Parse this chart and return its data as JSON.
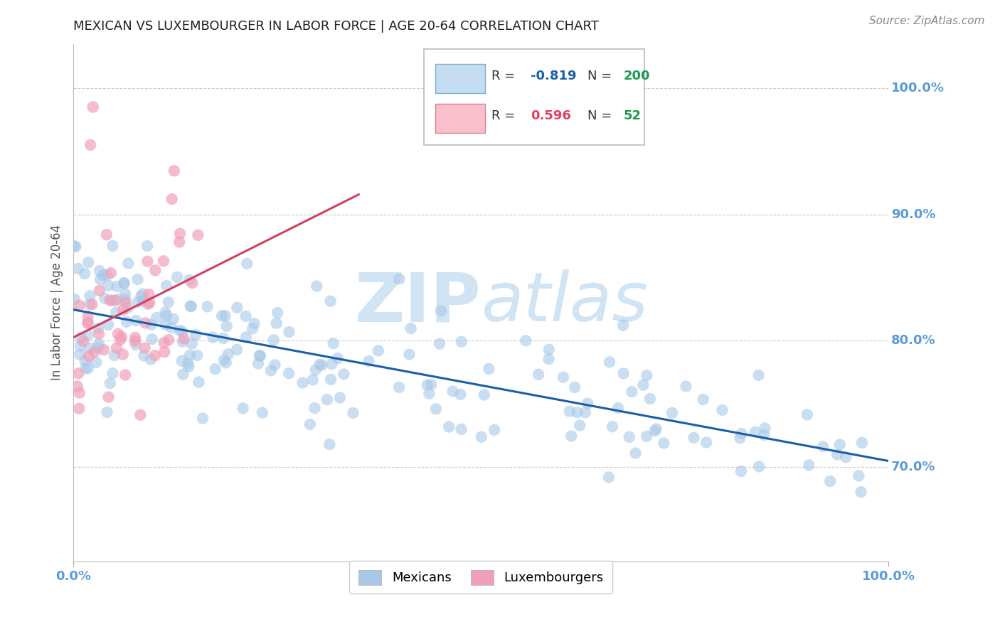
{
  "title": "MEXICAN VS LUXEMBOURGER IN LABOR FORCE | AGE 20-64 CORRELATION CHART",
  "source": "Source: ZipAtlas.com",
  "ylabel": "In Labor Force | Age 20-64",
  "legend_blue_r": "-0.819",
  "legend_blue_n": "200",
  "legend_pink_r": "0.596",
  "legend_pink_n": "52",
  "blue_color": "#a8c8e8",
  "pink_color": "#f0a0b8",
  "blue_line_color": "#1a5fa8",
  "pink_line_color": "#d44060",
  "watermark_zip": "ZIP",
  "watermark_atlas": "atlas",
  "watermark_color": "#d0e4f4",
  "title_color": "#222222",
  "axis_label_color": "#555555",
  "right_tick_color": "#5b9bd5",
  "bottom_tick_color": "#5b9bd5",
  "grid_color": "#cccccc",
  "background_color": "#ffffff",
  "legend_box_blue_fill": "#c5ddf0",
  "legend_box_blue_edge": "#7bafd4",
  "legend_box_pink_fill": "#f8c0cc",
  "legend_box_pink_edge": "#e08090",
  "legend_r_blue": "#1a5fa8",
  "legend_n_blue": "#1a9a50",
  "legend_r_pink": "#e04060",
  "legend_n_pink": "#1a9a50",
  "seed": 99,
  "blue_N": 200,
  "pink_N": 52,
  "xmin": 0.0,
  "xmax": 1.0,
  "ymin": 0.625,
  "ymax": 1.035
}
